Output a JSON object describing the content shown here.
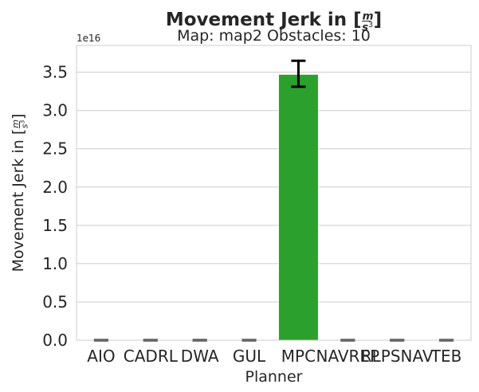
{
  "chart_data": {
    "type": "bar",
    "title": "Movement Jerk in [m/s³]",
    "title_parts": {
      "prefix": "Movement Jerk in [",
      "num": "m",
      "den_base": "s",
      "den_exp": "3",
      "suffix": "]"
    },
    "subtitle": "Map: map2 Obstacles: 10",
    "xlabel": "Planner",
    "ylabel": "Movement Jerk in [m/s³]",
    "ylabel_parts": {
      "prefix": "Movement Jerk in [",
      "num": "m",
      "den_base": "s",
      "den_exp": "3",
      "suffix": "]"
    },
    "y_scale_label": "1e16",
    "y_scale": 1e+16,
    "categories": [
      "AIO",
      "CADRL",
      "DWA",
      "GUL",
      "MPC",
      "NAVREP",
      "RLPSNAV",
      "TEB"
    ],
    "values": [
      0,
      0,
      0,
      0,
      3.47e+16,
      0,
      0,
      0
    ],
    "error_low": [
      0,
      0,
      0,
      0,
      3.31e+16,
      0,
      0,
      0
    ],
    "error_high": [
      0,
      0,
      0,
      0,
      3.65e+16,
      0,
      0,
      0
    ],
    "ylim": [
      0,
      3.85e+16
    ],
    "yticks": [
      0.0,
      0.5,
      1.0,
      1.5,
      2.0,
      2.5,
      3.0,
      3.5
    ],
    "ytick_labels": [
      "0.0",
      "0.5",
      "1.0",
      "1.5",
      "2.0",
      "2.5",
      "3.0",
      "3.5"
    ],
    "grid": "horizontal",
    "bar_color": "#2ca02c",
    "errorbar_color": "#000000",
    "grid_color": "#cccccc"
  }
}
